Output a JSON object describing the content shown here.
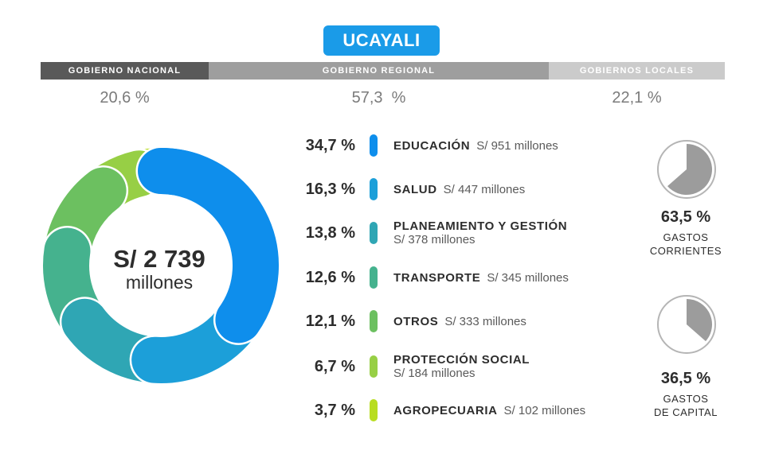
{
  "region": "UCAYALI",
  "government_levels": [
    {
      "label": "GOBIERNO NACIONAL",
      "pct": "20,6 %",
      "color": "#595959"
    },
    {
      "label": "GOBIERNO REGIONAL",
      "pct": "57,3  %",
      "color": "#9e9e9e"
    },
    {
      "label": "GOBIERNOS LOCALES",
      "pct": "22,1 %",
      "color": "#cbcbcb"
    }
  ],
  "total": {
    "amount": "S/ 2 739",
    "unit": "millones"
  },
  "chart_data": {
    "type": "pie",
    "total_millions": 2739,
    "categories": [
      "EDUCACIÓN",
      "SALUD",
      "PLANEAMIENTO Y GESTIÓN",
      "TRANSPORTE",
      "OTROS",
      "PROTECCIÓN SOCIAL",
      "AGROPECUARIA"
    ],
    "values": [
      34.7,
      16.3,
      13.8,
      12.6,
      12.1,
      6.7,
      3.7
    ],
    "amounts_millions": [
      951,
      447,
      378,
      345,
      333,
      184,
      102
    ],
    "colors": [
      "#0e8eec",
      "#1c9fd9",
      "#2fa6b4",
      "#45b28e",
      "#6cc060",
      "#97cf45",
      "#b8dd20"
    ]
  },
  "items": [
    {
      "pct": "34,7 %",
      "name": "EDUCACIÓN",
      "amount": "S/ 951 millones",
      "color": "#0e8eec"
    },
    {
      "pct": "16,3 %",
      "name": "SALUD",
      "amount": "S/ 447 millones",
      "color": "#1c9fd9"
    },
    {
      "pct": "13,8 %",
      "name": "PLANEAMIENTO Y GESTIÓN",
      "amount": "S/ 378 millones",
      "color": "#2fa6b4"
    },
    {
      "pct": "12,6 %",
      "name": "TRANSPORTE",
      "amount": "S/ 345 millones",
      "color": "#45b28e"
    },
    {
      "pct": "12,1 %",
      "name": "OTROS",
      "amount": "S/ 333 millones",
      "color": "#6cc060"
    },
    {
      "pct": "6,7 %",
      "name": "PROTECCIÓN SOCIAL",
      "amount": "S/ 184 millones",
      "color": "#97cf45"
    },
    {
      "pct": "3,7 %",
      "name": "AGROPECUARIA",
      "amount": "S/ 102 millones",
      "color": "#b8dd20"
    }
  ],
  "spending_types": [
    {
      "pct": "63,5 %",
      "label_line1": "GASTOS",
      "label_line2": "CORRIENTES",
      "fraction": 0.635,
      "color": "#9c9c9c"
    },
    {
      "pct": "36,5 %",
      "label_line1": "GASTOS",
      "label_line2": "DE CAPITAL",
      "fraction": 0.365,
      "color": "#9c9c9c"
    }
  ]
}
